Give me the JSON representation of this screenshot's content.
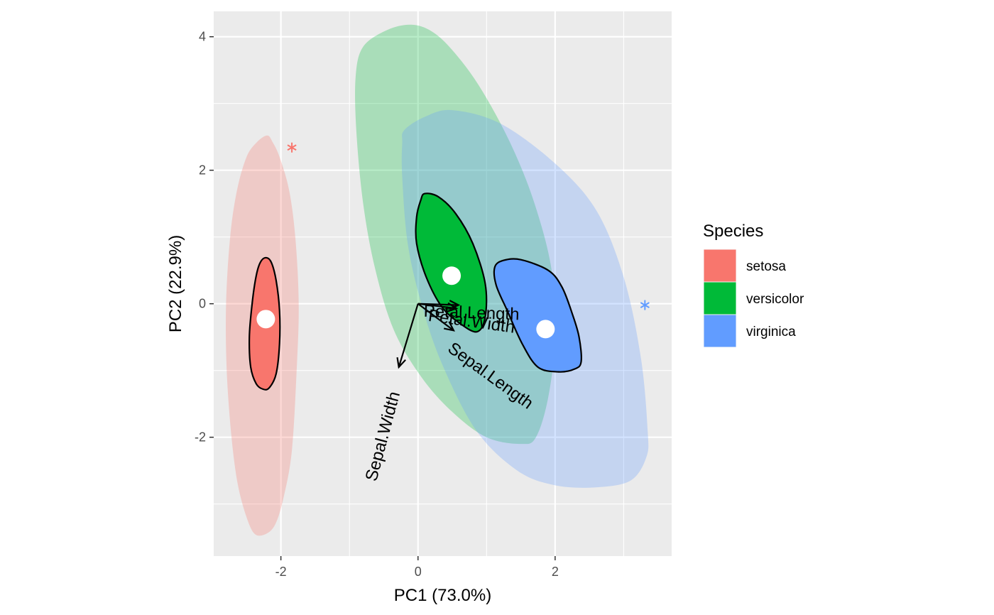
{
  "chart_data": {
    "type": "scatter",
    "subtype": "pca-biplot",
    "xlabel": "PC1 (73.0%)",
    "ylabel": "PC2 (22.9%)",
    "xlim": [
      -2.98,
      3.7
    ],
    "ylim": [
      -3.78,
      4.38
    ],
    "x_ticks": [
      -2,
      0,
      2
    ],
    "y_ticks": [
      -2,
      0,
      2,
      4
    ],
    "grid": true,
    "legend": {
      "title": "Species",
      "position": "right",
      "entries": [
        "setosa",
        "versicolor",
        "virginica"
      ]
    },
    "series": [
      {
        "name": "setosa",
        "color": "#F8766D",
        "centroid": [
          -2.22,
          -0.23
        ],
        "outlier": [
          -1.84,
          2.34
        ],
        "hull": [
          [
            -2.2,
            2.52
          ],
          [
            -2.35,
            2.42
          ],
          [
            -2.5,
            2.2
          ],
          [
            -2.64,
            1.7
          ],
          [
            -2.74,
            1.0
          ],
          [
            -2.8,
            0.0
          ],
          [
            -2.79,
            -1.0
          ],
          [
            -2.72,
            -2.0
          ],
          [
            -2.63,
            -2.7
          ],
          [
            -2.5,
            -3.2
          ],
          [
            -2.38,
            -3.45
          ],
          [
            -2.22,
            -3.45
          ],
          [
            -2.08,
            -3.3
          ],
          [
            -1.96,
            -2.9
          ],
          [
            -1.84,
            -2.2
          ],
          [
            -1.77,
            -1.0
          ],
          [
            -1.74,
            0.0
          ],
          [
            -1.79,
            1.0
          ],
          [
            -1.88,
            1.7
          ],
          [
            -2.02,
            2.2
          ],
          [
            -2.12,
            2.42
          ]
        ],
        "ellipse": [
          [
            -2.22,
            0.69
          ],
          [
            -2.3,
            0.62
          ],
          [
            -2.36,
            0.42
          ],
          [
            -2.42,
            0.0
          ],
          [
            -2.46,
            -0.5
          ],
          [
            -2.44,
            -0.95
          ],
          [
            -2.36,
            -1.2
          ],
          [
            -2.26,
            -1.28
          ],
          [
            -2.17,
            -1.26
          ],
          [
            -2.07,
            -1.05
          ],
          [
            -2.02,
            -0.6
          ],
          [
            -2.02,
            -0.1
          ],
          [
            -2.07,
            0.35
          ],
          [
            -2.14,
            0.62
          ]
        ]
      },
      {
        "name": "versicolor",
        "color": "#00BA38",
        "centroid": [
          0.49,
          0.42
        ],
        "hull": [
          [
            -0.8,
            3.85
          ],
          [
            -0.45,
            4.1
          ],
          [
            -0.1,
            4.18
          ],
          [
            0.2,
            4.08
          ],
          [
            0.5,
            3.8
          ],
          [
            0.9,
            3.25
          ],
          [
            1.35,
            2.4
          ],
          [
            1.7,
            1.5
          ],
          [
            1.95,
            0.5
          ],
          [
            2.0,
            -0.5
          ],
          [
            1.9,
            -1.4
          ],
          [
            1.72,
            -2.0
          ],
          [
            1.5,
            -2.1
          ],
          [
            1.0,
            -2.0
          ],
          [
            0.5,
            -1.62
          ],
          [
            0.05,
            -1.1
          ],
          [
            -0.35,
            -0.4
          ],
          [
            -0.62,
            0.5
          ],
          [
            -0.8,
            1.5
          ],
          [
            -0.9,
            2.6
          ],
          [
            -0.91,
            3.4
          ]
        ]
      },
      {
        "name": "virginica",
        "color": "#619CFF",
        "centroid": [
          1.86,
          -0.38
        ],
        "outlier": [
          3.31,
          -0.02
        ],
        "hull": [
          [
            -0.2,
            2.6
          ],
          [
            0.1,
            2.8
          ],
          [
            0.5,
            2.9
          ],
          [
            1.2,
            2.7
          ],
          [
            2.0,
            2.1
          ],
          [
            2.6,
            1.4
          ],
          [
            3.0,
            0.4
          ],
          [
            3.25,
            -0.8
          ],
          [
            3.35,
            -1.9
          ],
          [
            3.33,
            -2.3
          ],
          [
            3.1,
            -2.65
          ],
          [
            2.6,
            -2.75
          ],
          [
            2.0,
            -2.72
          ],
          [
            1.45,
            -2.5
          ],
          [
            0.85,
            -1.9
          ],
          [
            0.35,
            -0.9
          ],
          [
            0.05,
            0.0
          ],
          [
            -0.15,
            0.9
          ],
          [
            -0.23,
            1.9
          ],
          [
            -0.23,
            2.4
          ]
        ]
      }
    ],
    "overlay_ellipses": [
      {
        "series": "versicolor",
        "points": [
          [
            0.1,
            1.65
          ],
          [
            0.3,
            1.6
          ],
          [
            0.55,
            1.35
          ],
          [
            0.8,
            0.9
          ],
          [
            0.98,
            0.3
          ],
          [
            0.98,
            -0.2
          ],
          [
            0.86,
            -0.42
          ],
          [
            0.62,
            -0.3
          ],
          [
            0.35,
            -0.05
          ],
          [
            0.12,
            0.4
          ],
          [
            -0.02,
            0.9
          ],
          [
            -0.02,
            1.3
          ],
          [
            0.04,
            1.55
          ]
        ]
      },
      {
        "series": "virginica",
        "points": [
          [
            1.25,
            0.65
          ],
          [
            1.5,
            0.66
          ],
          [
            1.9,
            0.5
          ],
          [
            2.1,
            0.25
          ],
          [
            2.25,
            -0.15
          ],
          [
            2.35,
            -0.5
          ],
          [
            2.38,
            -0.87
          ],
          [
            2.28,
            -0.98
          ],
          [
            2.05,
            -1.02
          ],
          [
            1.75,
            -0.95
          ],
          [
            1.52,
            -0.6
          ],
          [
            1.3,
            -0.1
          ],
          [
            1.14,
            0.28
          ],
          [
            1.12,
            0.55
          ]
        ]
      }
    ],
    "loadings": [
      {
        "name": "Petal.Length",
        "x": 0.59,
        "y": -0.02,
        "label_pos": [
          0.78,
          -0.15
        ],
        "angle": 2
      },
      {
        "name": "Petal.Width",
        "x": 0.56,
        "y": -0.07,
        "label_pos": [
          0.78,
          -0.28
        ],
        "angle": 8
      },
      {
        "name": "Sepal.Length",
        "x": 0.52,
        "y": -0.4,
        "label_pos": [
          1.05,
          -1.09
        ],
        "angle": 36
      },
      {
        "name": "Sepal.Width",
        "x": -0.28,
        "y": -0.95,
        "label_pos": [
          -0.5,
          -1.99
        ],
        "angle": -75
      }
    ]
  }
}
